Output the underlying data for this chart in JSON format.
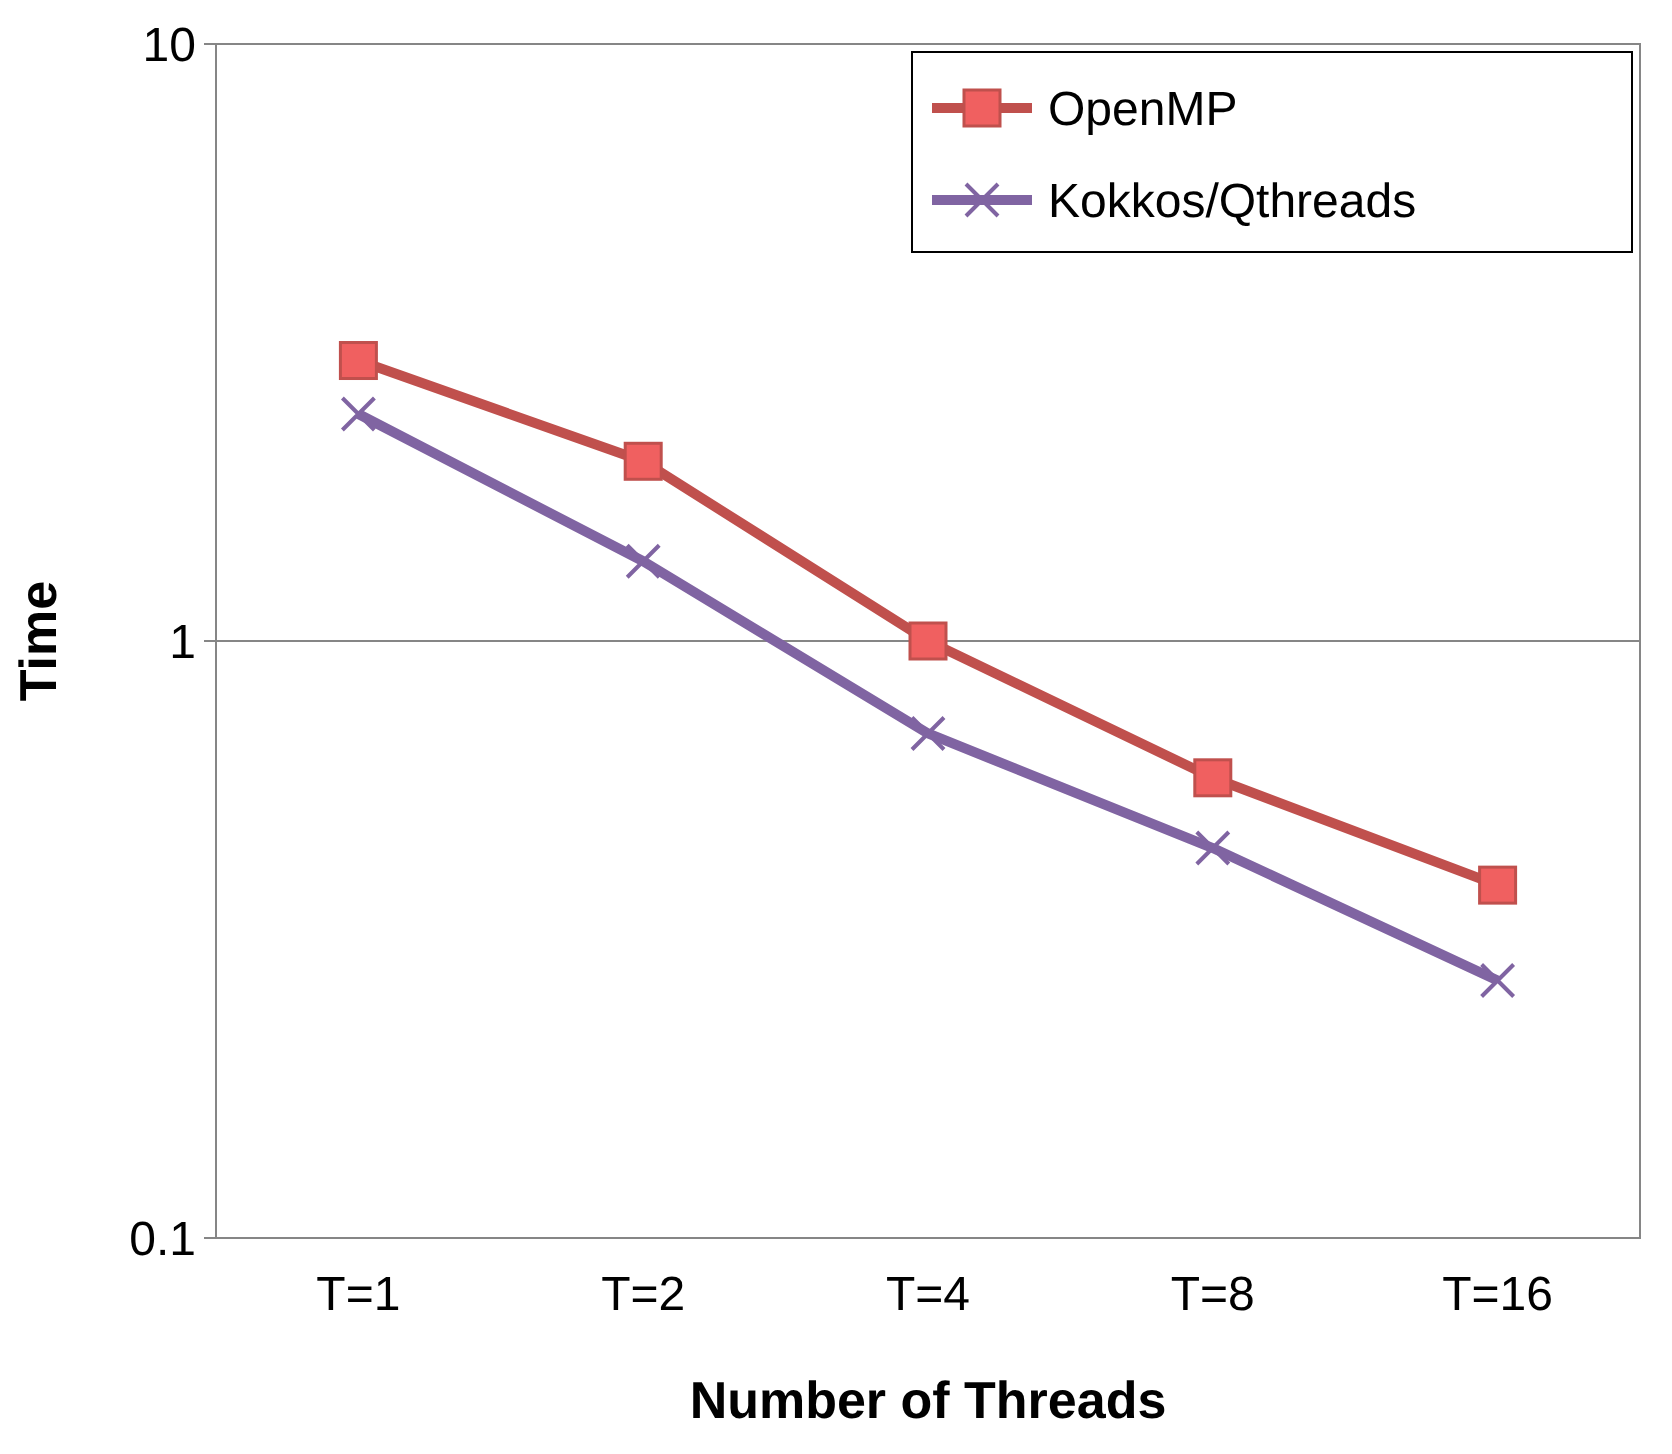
{
  "chart_data": {
    "type": "line",
    "xlabel": "Number of Threads",
    "ylabel": "Time",
    "categories": [
      "T=1",
      "T=2",
      "T=4",
      "T=8",
      "T=16"
    ],
    "series": [
      {
        "name": "OpenMP",
        "color": "#c0504d",
        "marker": "square",
        "values": [
          2.95,
          2.0,
          1.0,
          0.59,
          0.39
        ]
      },
      {
        "name": "Kokkos/Qthreads",
        "color": "#8064a2",
        "marker": "cross",
        "values": [
          2.4,
          1.36,
          0.7,
          0.45,
          0.27
        ]
      }
    ],
    "log": "y",
    "ylim": [
      0.1,
      10
    ],
    "yticks": [
      0.1,
      1,
      10
    ],
    "grid": "y",
    "legend": "top right"
  }
}
